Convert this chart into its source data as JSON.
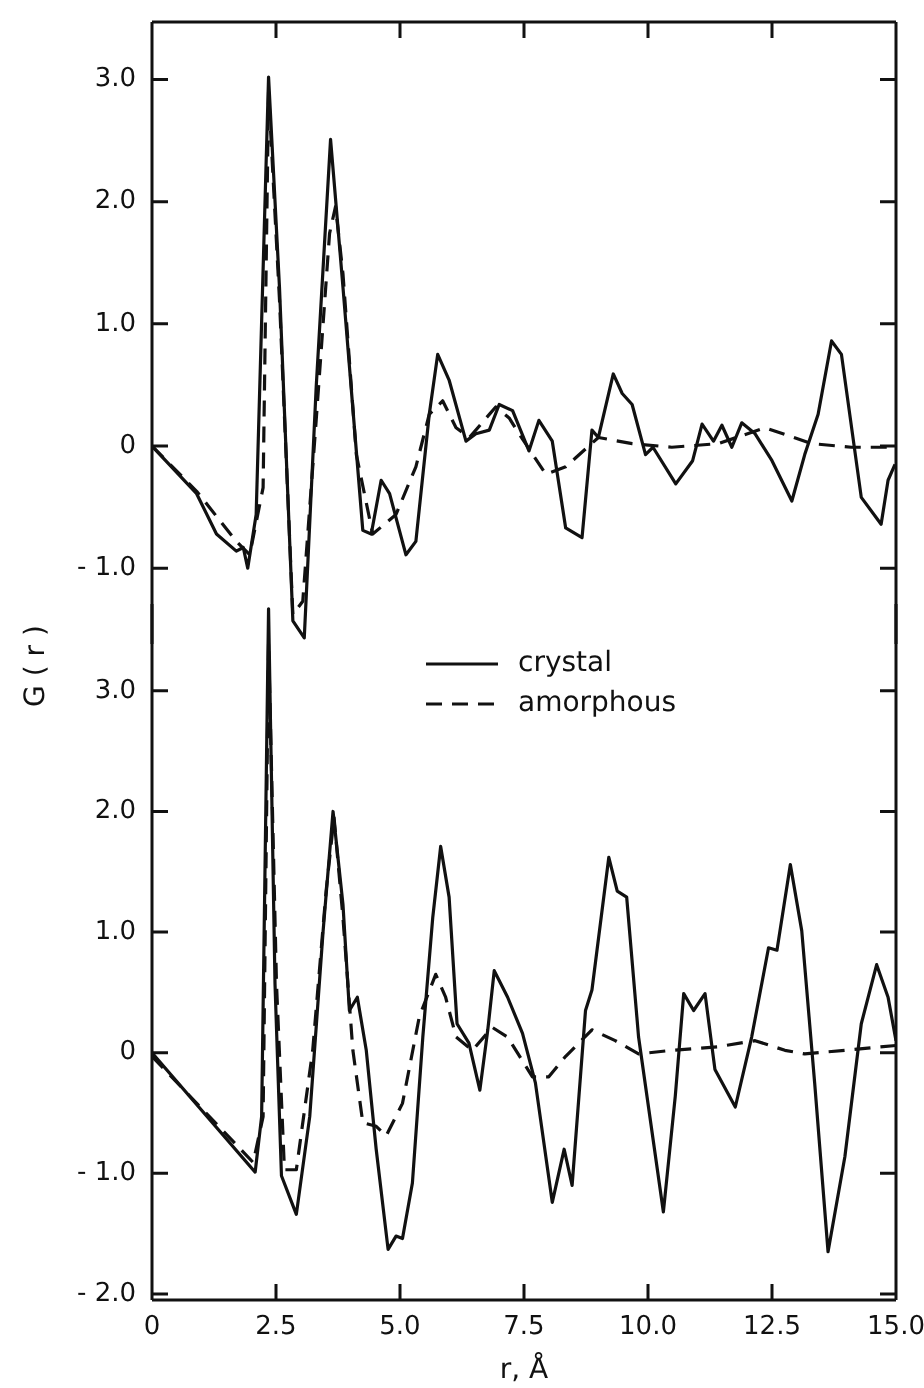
{
  "chart_data": [
    {
      "type": "line",
      "ylabel": "G ( r )",
      "tick_labels": "y",
      "marker": "none",
      "grid": false,
      "xlim": [
        0,
        15
      ],
      "xticks": [
        0,
        2.5,
        5,
        7.5,
        10,
        12.5,
        15
      ],
      "ylim": [
        -1.62,
        3.47
      ],
      "yticks": [
        {
          "value": -1,
          "label": "- 1.0"
        },
        0,
        {
          "value": 1,
          "label": "1.0"
        },
        {
          "value": 2,
          "label": "2.0"
        },
        {
          "value": 3,
          "label": "3.0"
        }
      ],
      "series": [
        {
          "color": "#111111",
          "line_style": "solid",
          "x": [
            0,
            0.9,
            1.3,
            1.7,
            1.84,
            1.93,
            2.1,
            2.35,
            2.57,
            2.84,
            3.07,
            3.31,
            3.6,
            3.85,
            4.25,
            4.42,
            4.62,
            4.79,
            5.12,
            5.32,
            5.59,
            5.76,
            5.99,
            6.33,
            6.53,
            6.8,
            7.0,
            7.27,
            7.6,
            7.8,
            8.07,
            8.34,
            8.67,
            8.87,
            9.0,
            9.3,
            9.48,
            9.68,
            9.95,
            10.1,
            10.56,
            10.9,
            11.09,
            11.32,
            11.49,
            11.69,
            11.89,
            12.16,
            12.5,
            12.9,
            13.16,
            13.43,
            13.7,
            13.9,
            14.3,
            14.7,
            14.84,
            14.98
          ],
          "values": [
            0,
            -0.39,
            -0.72,
            -0.86,
            -0.83,
            -1.0,
            -0.56,
            3.02,
            1.3,
            -1.43,
            -1.57,
            0.48,
            2.51,
            1.3,
            -0.69,
            -0.72,
            -0.28,
            -0.39,
            -0.89,
            -0.78,
            0.26,
            0.75,
            0.54,
            0.04,
            0.1,
            0.13,
            0.34,
            0.29,
            -0.04,
            0.21,
            0.04,
            -0.67,
            -0.75,
            0.13,
            0.07,
            0.59,
            0.43,
            0.34,
            -0.07,
            -0.01,
            -0.31,
            -0.12,
            0.18,
            0.04,
            0.17,
            -0.01,
            0.19,
            0.1,
            -0.12,
            -0.45,
            -0.07,
            0.26,
            0.86,
            0.75,
            -0.42,
            -0.64,
            -0.28,
            -0.15
          ]
        },
        {
          "color": "#111111",
          "line_style": "dashed",
          "x": [
            0,
            0.9,
            1.7,
            1.97,
            2.24,
            2.35,
            2.57,
            2.84,
            3.04,
            3.31,
            3.58,
            3.7,
            3.85,
            4.12,
            4.45,
            4.92,
            5.32,
            5.59,
            5.86,
            6.13,
            6.4,
            6.93,
            7.2,
            7.4,
            7.94,
            8.34,
            9.0,
            9.68,
            10.48,
            11.42,
            12.36,
            13.3,
            14.1,
            14.98
          ],
          "values": [
            0,
            -0.37,
            -0.78,
            -0.89,
            -0.34,
            2.9,
            1.2,
            -1.38,
            -1.27,
            0.21,
            1.74,
            1.96,
            1.41,
            -0.07,
            -0.72,
            -0.56,
            -0.17,
            0.26,
            0.37,
            0.15,
            0.07,
            0.32,
            0.23,
            0.1,
            -0.23,
            -0.17,
            0.07,
            0.02,
            -0.01,
            0.02,
            0.15,
            0.02,
            -0.01,
            -0.01
          ]
        }
      ]
    },
    {
      "type": "line",
      "xlabel": "r, Å",
      "legend": "top",
      "marker": "none",
      "grid": false,
      "xlim": [
        0,
        15
      ],
      "xticks": [
        0,
        2.5,
        {
          "value": 5,
          "label": "5.0"
        },
        7.5,
        {
          "value": 10,
          "label": "10.0"
        },
        12.5,
        {
          "value": 15,
          "label": "15.0"
        }
      ],
      "ylim": [
        -2.05,
        3.72
      ],
      "yticks": [
        {
          "value": -2,
          "label": "- 2.0"
        },
        {
          "value": -1,
          "label": "- 1.0"
        },
        0,
        {
          "value": 1,
          "label": "1.0"
        },
        {
          "value": 2,
          "label": "2.0"
        },
        {
          "value": 3,
          "label": "3.0"
        }
      ],
      "series": [
        {
          "name": "crystal",
          "color": "#111111",
          "line_style": "solid",
          "x": [
            0,
            2.08,
            2.21,
            2.35,
            2.48,
            2.61,
            2.91,
            3.18,
            3.45,
            3.65,
            3.85,
            3.98,
            4.14,
            4.32,
            4.52,
            4.76,
            4.92,
            5.05,
            5.25,
            5.46,
            5.66,
            5.82,
            5.99,
            6.15,
            6.39,
            6.61,
            6.77,
            6.9,
            7.17,
            7.47,
            7.73,
            8.07,
            8.31,
            8.47,
            8.74,
            8.87,
            9.21,
            9.38,
            9.57,
            9.81,
            10.31,
            10.55,
            10.72,
            10.92,
            11.15,
            11.35,
            11.76,
            12.09,
            12.43,
            12.6,
            12.87,
            13.1,
            13.36,
            13.63,
            13.97,
            14.3,
            14.61,
            14.84,
            15.0
          ],
          "values": [
            0,
            -0.99,
            -0.53,
            3.68,
            0.57,
            -1.02,
            -1.34,
            -0.53,
            1.01,
            2.0,
            1.23,
            0.35,
            0.46,
            0.02,
            -0.8,
            -1.63,
            -1.52,
            -1.54,
            -1.08,
            0.13,
            1.12,
            1.71,
            1.29,
            0.24,
            0.08,
            -0.31,
            0.19,
            0.68,
            0.46,
            0.16,
            -0.25,
            -1.24,
            -0.8,
            -1.1,
            0.35,
            0.52,
            1.62,
            1.34,
            1.29,
            0.13,
            -1.32,
            -0.36,
            0.49,
            0.35,
            0.49,
            -0.14,
            -0.45,
            0.13,
            0.87,
            0.85,
            1.56,
            1.01,
            -0.25,
            -1.65,
            -0.86,
            0.24,
            0.73,
            0.46,
            0.1
          ]
        },
        {
          "name": "amorphous",
          "color": "#111111",
          "line_style": "dashed",
          "x": [
            0,
            2.04,
            2.24,
            2.35,
            2.51,
            2.67,
            2.91,
            3.24,
            3.51,
            3.67,
            3.85,
            4.05,
            4.25,
            4.52,
            4.72,
            5.05,
            5.39,
            5.72,
            5.92,
            6.13,
            6.46,
            6.86,
            7.17,
            7.67,
            8.0,
            8.34,
            8.87,
            9.34,
            9.81,
            10.48,
            11.42,
            12.16,
            12.76,
            13.16,
            13.97,
            15.0
          ],
          "values": [
            -0.03,
            -0.91,
            -0.53,
            3.4,
            0.57,
            -0.97,
            -0.97,
            0.02,
            1.34,
            1.95,
            1.12,
            0.02,
            -0.58,
            -0.61,
            -0.69,
            -0.42,
            0.3,
            0.65,
            0.46,
            0.13,
            0.02,
            0.21,
            0.13,
            -0.2,
            -0.2,
            -0.03,
            0.19,
            0.1,
            -0.01,
            0.02,
            0.05,
            0.1,
            0.02,
            -0.01,
            0.02,
            0.06
          ]
        }
      ]
    }
  ]
}
